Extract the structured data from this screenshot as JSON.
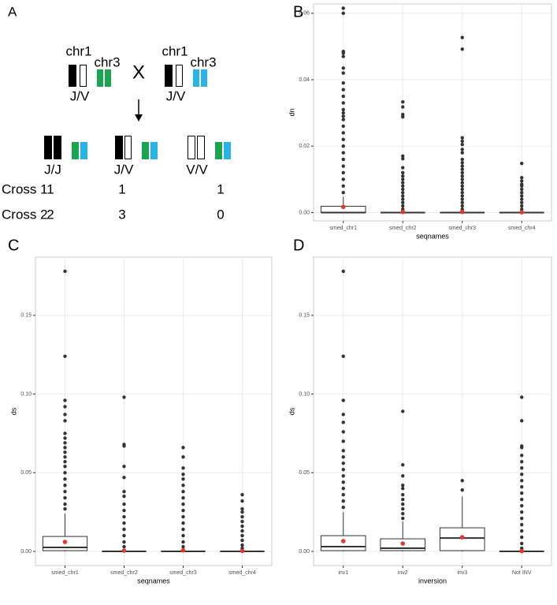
{
  "diagram": {
    "label": "A",
    "cross_symbol": "X",
    "parents": [
      {
        "chr1": "chr1",
        "chr3": "chr3",
        "genotype": "J/V"
      },
      {
        "chr1": "chr1",
        "chr3": "chr3",
        "genotype": "J/V"
      }
    ],
    "offspring": [
      "J/J",
      "J/V",
      "V/V"
    ],
    "crosses": [
      {
        "name": "Cross 1",
        "counts": [
          1,
          1,
          1
        ]
      },
      {
        "name": "Cross 2",
        "counts": [
          2,
          3,
          0
        ]
      }
    ]
  },
  "chart_data": [
    {
      "type": "box",
      "label": "B",
      "x_label": "seqnames",
      "y_label": "dn",
      "grid": true,
      "color": "#333333",
      "mean_color": "#e8342a",
      "categories": [
        "smed_chr1",
        "smed_chr2",
        "smed_chr3",
        "smed_chr4"
      ],
      "ylim": [
        -0.0025,
        0.0628
      ],
      "yticks": [
        {
          "value": 0,
          "label": "0.00"
        },
        0.02,
        0.04,
        0.06
      ],
      "boxes": [
        {
          "whisker_low": 0,
          "q1": 0,
          "median": 0,
          "q3": 0.0019,
          "whisker_high": 0.0048,
          "mean": 0.0017,
          "outliers": [
            0.0615,
            0.06,
            0.0485,
            0.048,
            0.047,
            0.0435,
            0.042,
            0.039,
            0.037,
            0.035,
            0.033,
            0.031,
            0.03,
            0.029,
            0.028,
            0.026,
            0.024,
            0.022,
            0.02,
            0.018,
            0.016,
            0.014,
            0.012,
            0.01,
            0.008,
            0.006
          ]
        },
        {
          "whisker_low": 0,
          "q1": 0,
          "median": 0,
          "q3": 0,
          "whisker_high": 0,
          "mean": 0.0002,
          "outliers": [
            0.0333,
            0.0318,
            0.0295,
            0.0288,
            0.017,
            0.0162,
            0.0135,
            0.012,
            0.011,
            0.01,
            0.009,
            0.008,
            0.007,
            0.006,
            0.005,
            0.004,
            0.003,
            0.002,
            0.001
          ]
        },
        {
          "whisker_low": 0,
          "q1": 0,
          "median": 0,
          "q3": 0,
          "whisker_high": 0,
          "mean": 0.0002,
          "outliers": [
            0.0527,
            0.0492,
            0.0225,
            0.0215,
            0.0205,
            0.019,
            0.018,
            0.016,
            0.015,
            0.014,
            0.013,
            0.012,
            0.011,
            0.01,
            0.009,
            0.008,
            0.007,
            0.006,
            0.005,
            0.004,
            0.003,
            0.002,
            0.001
          ]
        },
        {
          "whisker_low": 0,
          "q1": 0,
          "median": 0,
          "q3": 0,
          "whisker_high": 0,
          "mean": 0.0001,
          "outliers": [
            0.0148,
            0.0105,
            0.0095,
            0.0085,
            0.008,
            0.007,
            0.006,
            0.005,
            0.004,
            0.003,
            0.002,
            0.001
          ]
        }
      ]
    },
    {
      "type": "box",
      "label": "C",
      "x_label": "seqnames",
      "y_label": "ds",
      "grid": true,
      "color": "#333333",
      "mean_color": "#e8342a",
      "categories": [
        "smed_chr1",
        "smed_chr2",
        "smed_chr3",
        "smed_chr4"
      ],
      "ylim": [
        -0.009,
        0.187
      ],
      "yticks": [
        {
          "value": 0,
          "label": "0.00"
        },
        0.05,
        {
          "value": 0.1,
          "label": "0.10"
        },
        0.15
      ],
      "boxes": [
        {
          "whisker_low": 0,
          "q1": 0.0005,
          "median": 0.0025,
          "q3": 0.0095,
          "whisker_high": 0.024,
          "mean": 0.006,
          "outliers": [
            0.178,
            0.124,
            0.096,
            0.092,
            0.087,
            0.083,
            0.075,
            0.072,
            0.069,
            0.066,
            0.063,
            0.06,
            0.057,
            0.054,
            0.05,
            0.046,
            0.042,
            0.038,
            0.034,
            0.03,
            0.027
          ]
        },
        {
          "whisker_low": 0,
          "q1": 0,
          "median": 0,
          "q3": 0,
          "whisker_high": 0,
          "mean": 0.0005,
          "outliers": [
            0.098,
            0.068,
            0.067,
            0.054,
            0.047,
            0.038,
            0.035,
            0.03,
            0.026,
            0.022,
            0.018,
            0.014,
            0.01,
            0.006,
            0.003
          ]
        },
        {
          "whisker_low": 0,
          "q1": 0,
          "median": 0,
          "q3": 0,
          "whisker_high": 0,
          "mean": 0.0007,
          "outliers": [
            0.066,
            0.06,
            0.053,
            0.049,
            0.046,
            0.042,
            0.038,
            0.034,
            0.03,
            0.026,
            0.022,
            0.018,
            0.014,
            0.01,
            0.006,
            0.003
          ]
        },
        {
          "whisker_low": 0,
          "q1": 0,
          "median": 0,
          "q3": 0,
          "whisker_high": 0,
          "mean": 0.0003,
          "outliers": [
            0.036,
            0.032,
            0.027,
            0.025,
            0.022,
            0.019,
            0.016,
            0.013,
            0.01,
            0.007,
            0.004,
            0.002
          ]
        }
      ]
    },
    {
      "type": "box",
      "label": "D",
      "x_label": "inversion",
      "y_label": "ds",
      "grid": true,
      "color": "#333333",
      "mean_color": "#e8342a",
      "categories": [
        "inv1",
        "inv2",
        "inv3",
        "Not INV"
      ],
      "ylim": [
        -0.009,
        0.187
      ],
      "yticks": [
        {
          "value": 0,
          "label": "0.00"
        },
        0.05,
        {
          "value": 0.1,
          "label": "0.10"
        },
        0.15
      ],
      "boxes": [
        {
          "whisker_low": 0,
          "q1": 0.0005,
          "median": 0.003,
          "q3": 0.01,
          "whisker_high": 0.025,
          "mean": 0.0065,
          "outliers": [
            0.178,
            0.124,
            0.096,
            0.087,
            0.082,
            0.076,
            0.07,
            0.064,
            0.06,
            0.056,
            0.052,
            0.048,
            0.044,
            0.04,
            0.036,
            0.032,
            0.028
          ]
        },
        {
          "whisker_low": 0,
          "q1": 0.0005,
          "median": 0.002,
          "q3": 0.008,
          "whisker_high": 0.019,
          "mean": 0.005,
          "outliers": [
            0.089,
            0.055,
            0.048,
            0.042,
            0.04,
            0.036,
            0.033,
            0.03,
            0.027,
            0.024,
            0.021
          ]
        },
        {
          "whisker_low": 0,
          "q1": 0.0005,
          "median": 0.0085,
          "q3": 0.015,
          "whisker_high": 0.035,
          "mean": 0.009,
          "outliers": [
            0.045,
            0.039
          ]
        },
        {
          "whisker_low": 0,
          "q1": 0,
          "median": 0,
          "q3": 0,
          "whisker_high": 0,
          "mean": 0.0002,
          "outliers": [
            0.098,
            0.083,
            0.067,
            0.066,
            0.061,
            0.057,
            0.053,
            0.049,
            0.045,
            0.041,
            0.037,
            0.033,
            0.029,
            0.025,
            0.021,
            0.017,
            0.013,
            0.009,
            0.005,
            0.002
          ]
        }
      ]
    }
  ]
}
